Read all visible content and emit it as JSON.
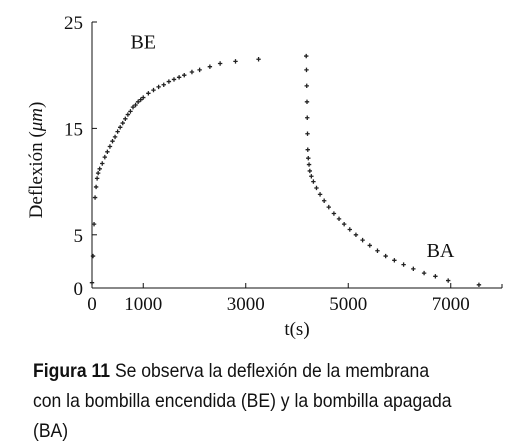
{
  "chart_data": {
    "type": "scatter",
    "xlabel": "t(s)",
    "ylabel_prefix": "Deflexión (",
    "ylabel_unit": "μm",
    "ylabel_suffix": ")",
    "xlim": [
      0,
      8000
    ],
    "ylim": [
      0,
      25
    ],
    "x_ticks": [
      0,
      1000,
      3000,
      5000,
      7000
    ],
    "y_ticks": [
      0,
      5,
      15,
      25
    ],
    "series": [
      {
        "name": "BE",
        "x": [
          0,
          20,
          40,
          60,
          80,
          100,
          120,
          150,
          200,
          250,
          300,
          350,
          400,
          450,
          500,
          550,
          600,
          650,
          700,
          750,
          800,
          850,
          900,
          950,
          1000,
          1100,
          1200,
          1300,
          1400,
          1500,
          1600,
          1700,
          1800,
          1950,
          2100,
          2300,
          2500,
          2800,
          3250
        ],
        "y": [
          0.5,
          3,
          6,
          8.5,
          9.5,
          10.3,
          10.8,
          11.2,
          11.7,
          12.3,
          12.8,
          13.3,
          13.8,
          14.2,
          14.7,
          15.1,
          15.5,
          15.9,
          16.3,
          16.6,
          17.0,
          17.2,
          17.5,
          17.7,
          17.9,
          18.3,
          18.6,
          18.9,
          19.1,
          19.4,
          19.6,
          19.8,
          20.0,
          20.3,
          20.5,
          20.8,
          21.1,
          21.3,
          21.5
        ]
      },
      {
        "name": "BA",
        "x": [
          4180,
          4185,
          4190,
          4195,
          4200,
          4205,
          4210,
          4220,
          4235,
          4250,
          4280,
          4320,
          4380,
          4450,
          4530,
          4620,
          4720,
          4820,
          4920,
          5030,
          5150,
          5280,
          5420,
          5570,
          5730,
          5900,
          6080,
          6270,
          6480,
          6700,
          6950,
          7550
        ],
        "y": [
          21.8,
          20.5,
          19.0,
          17.5,
          16.0,
          14.5,
          13.0,
          12.2,
          11.6,
          11.0,
          10.5,
          10.0,
          9.4,
          8.8,
          8.2,
          7.6,
          7.0,
          6.5,
          6.0,
          5.5,
          5.0,
          4.5,
          4.0,
          3.5,
          3.0,
          2.6,
          2.2,
          1.8,
          1.4,
          1.1,
          0.7,
          0.3
        ]
      }
    ],
    "annotations": [
      {
        "text": "BE",
        "x": 1000,
        "y": 22.5
      },
      {
        "text": "BA",
        "x": 6800,
        "y": 2.9
      }
    ],
    "grid": false
  },
  "caption": {
    "label": "Figura 11",
    "text": " Se observa la deflexión de la membrana con la bombilla encendida (BE) y la bombilla apagada (BA)"
  },
  "colors": {
    "marker": "#222222",
    "axis": "#111111"
  }
}
